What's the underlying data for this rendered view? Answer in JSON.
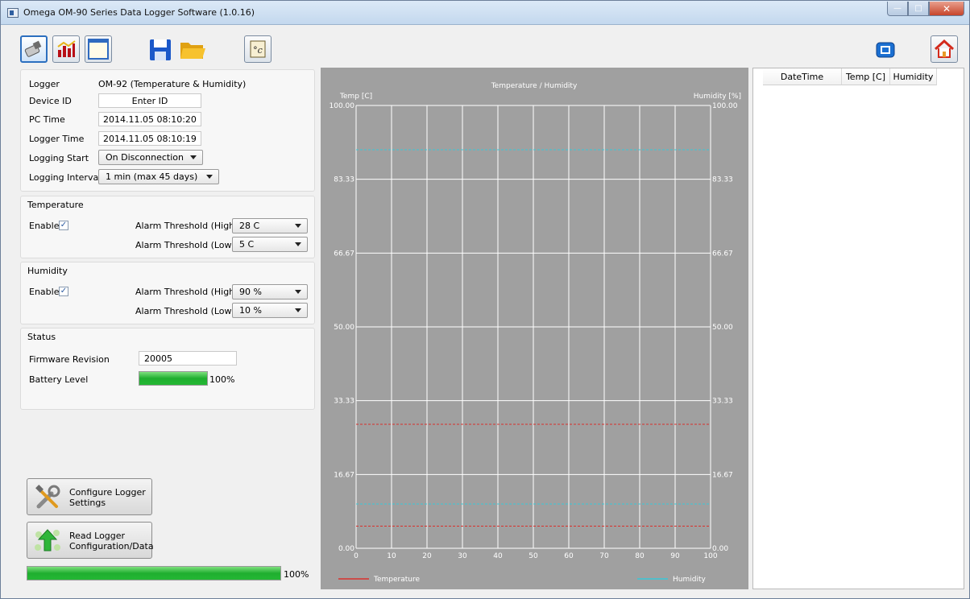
{
  "window": {
    "title": "Omega OM-90 Series Data Logger Software (1.0.16)"
  },
  "logger": {
    "logger_label": "Logger",
    "logger_value": "OM-92 (Temperature & Humidity)",
    "device_id_label": "Device ID",
    "device_id_value": "Enter ID",
    "pc_time_label": "PC Time",
    "pc_time_value": "2014.11.05 08:10:20",
    "logger_time_label": "Logger Time",
    "logger_time_value": "2014.11.05 08:10:19",
    "logging_start_label": "Logging Start",
    "logging_start_value": "On Disconnection",
    "logging_interval_label": "Logging Interval",
    "logging_interval_value": "1 min (max 45 days)"
  },
  "temperature": {
    "title": "Temperature",
    "enable_label": "Enable",
    "enabled": true,
    "high_label": "Alarm Threshold (High)",
    "high_value": "28 C",
    "low_label": "Alarm Threshold (Low)",
    "low_value": "5 C"
  },
  "humidity": {
    "title": "Humidity",
    "enable_label": "Enable",
    "enabled": true,
    "high_label": "Alarm Threshold (High)",
    "high_value": "90 %",
    "low_label": "Alarm Threshold (Low)",
    "low_value": "10 %"
  },
  "status": {
    "title": "Status",
    "firmware_label": "Firmware Revision",
    "firmware_value": "20005",
    "battery_label": "Battery Level",
    "battery_value": "100%",
    "battery_fraction": 1.0
  },
  "actions": {
    "configure_line1": "Configure Logger",
    "configure_line2": "Settings",
    "read_line1": "Read Logger",
    "read_line2": "Configuration/Data",
    "progress_value": "100%",
    "progress_fraction": 1.0
  },
  "table": {
    "columns": [
      "DateTime",
      "Temp [C]",
      "Humidity"
    ]
  },
  "icons": {
    "toolbar": [
      "logger-device-icon",
      "chart-icon",
      "table-window-icon",
      "save-icon",
      "open-folder-icon",
      "celsius-icon",
      "refresh-icon",
      "home-icon"
    ]
  },
  "chart_data": {
    "type": "line",
    "title": "Temperature / Humidity",
    "ylabel": "Temp [C]",
    "y2label": "Humidity [%]",
    "xlim": [
      0,
      100
    ],
    "ylim": [
      0,
      100
    ],
    "y2lim": [
      0,
      100
    ],
    "x_ticks": [
      "0",
      "10",
      "20",
      "30",
      "40",
      "50",
      "60",
      "70",
      "80",
      "90",
      "100"
    ],
    "y_ticks": [
      "0.00",
      "16.67",
      "33.33",
      "50.00",
      "66.67",
      "83.33",
      "100.00"
    ],
    "grid": true,
    "legend_placement": "bottom",
    "series": [
      {
        "name": "Temperature",
        "color": "#d9302c",
        "values": []
      },
      {
        "name": "Humidity",
        "color": "#38c8d8",
        "values": []
      }
    ],
    "threshold_lines": [
      {
        "series": "Temperature",
        "value": 28,
        "color": "#d9302c"
      },
      {
        "series": "Temperature",
        "value": 5,
        "color": "#d9302c"
      },
      {
        "series": "Humidity",
        "value": 90,
        "color": "#38c8d8"
      },
      {
        "series": "Humidity",
        "value": 10,
        "color": "#38c8d8"
      }
    ]
  }
}
